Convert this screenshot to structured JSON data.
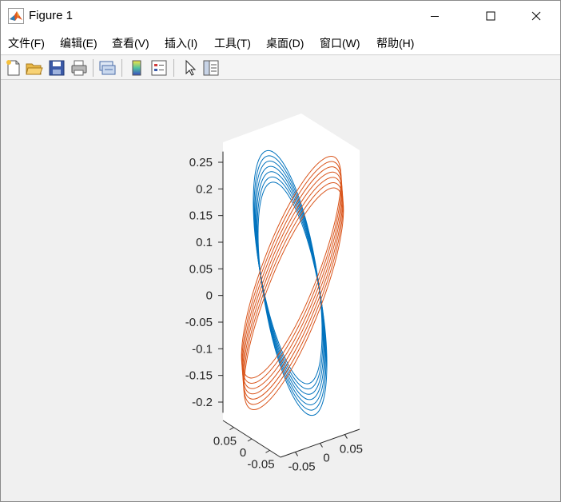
{
  "window": {
    "title": "Figure 1",
    "controls": [
      "minimize-icon",
      "maximize-icon",
      "close-icon"
    ]
  },
  "menu": {
    "items": [
      "文件(F)",
      "编辑(E)",
      "查看(V)",
      "插入(I)",
      "工具(T)",
      "桌面(D)",
      "窗口(W)",
      "帮助(H)"
    ],
    "dock_arrow": "↘"
  },
  "toolbar": {
    "tools": [
      "new-figure-icon",
      "open-file-icon",
      "save-icon",
      "print-icon",
      "link-icon",
      "colorbar-icon",
      "legend-icon",
      "pointer-icon",
      "property-inspector-icon"
    ]
  },
  "chart_data": {
    "type": "line",
    "dimensions": 3,
    "title": "",
    "xlabel": "",
    "ylabel": "",
    "zlabel": "",
    "x_ticks": [
      "-0.05",
      "0",
      "0.05"
    ],
    "y_ticks": [
      "-0.05",
      "0",
      "0.05"
    ],
    "z_ticks": [
      "-0.2",
      "-0.15",
      "-0.1",
      "-0.05",
      "0",
      "0.05",
      "0.1",
      "0.15",
      "0.2",
      "0.25"
    ],
    "xlim": [
      -0.08,
      0.08
    ],
    "ylim": [
      -0.08,
      0.08
    ],
    "zlim": [
      -0.22,
      0.27
    ],
    "grid": false,
    "series": [
      {
        "color": "#0072BD",
        "loops": 7,
        "z_range": [
          -0.21,
          0.25
        ]
      },
      {
        "color": "#D95319",
        "loops": 7,
        "z_range": [
          -0.21,
          0.25
        ]
      }
    ]
  }
}
